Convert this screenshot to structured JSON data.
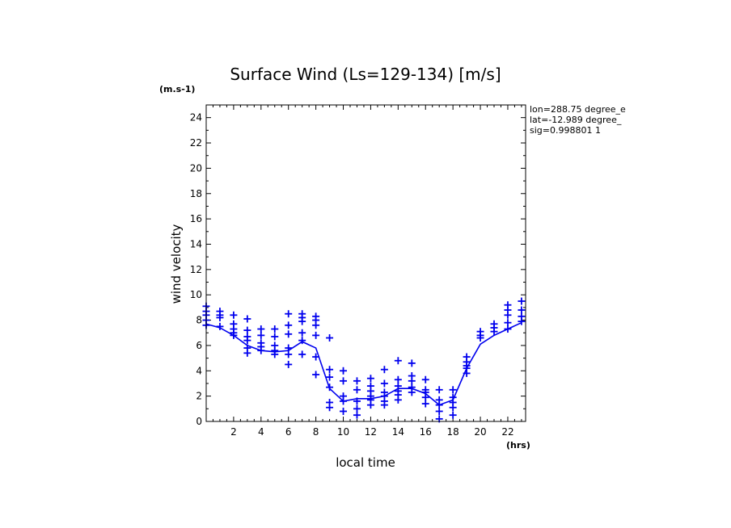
{
  "chart_data": {
    "type": "scatter",
    "title": "Surface Wind  (Ls=129-134) [m/s]",
    "xlabel": "local time",
    "ylabel": "wind velocity",
    "x_unit": "(hrs)",
    "y_unit": "(m.s-1)",
    "xlim": [
      0,
      23.3
    ],
    "ylim": [
      0,
      25
    ],
    "x_ticks": [
      2,
      4,
      6,
      8,
      10,
      12,
      14,
      16,
      18,
      20,
      22
    ],
    "y_ticks": [
      0,
      2,
      4,
      6,
      8,
      10,
      12,
      14,
      16,
      18,
      20,
      22,
      24
    ],
    "grid": false,
    "color": "#0000ee",
    "info_lines": [
      "lon=288.75 degree_e",
      "lat=-12.989 degree_",
      "sig=0.998801 1"
    ],
    "series": [
      {
        "type": "scatter",
        "points": [
          [
            0.0,
            9.1
          ],
          [
            0.0,
            8.7
          ],
          [
            0.0,
            8.4
          ],
          [
            0.0,
            8.0
          ],
          [
            0.0,
            7.6
          ],
          [
            1.0,
            8.7
          ],
          [
            1.0,
            8.4
          ],
          [
            1.0,
            8.2
          ],
          [
            1.0,
            7.5
          ],
          [
            2.0,
            8.4
          ],
          [
            2.0,
            7.7
          ],
          [
            2.0,
            7.3
          ],
          [
            2.0,
            7.0
          ],
          [
            2.0,
            6.8
          ],
          [
            3.0,
            8.1
          ],
          [
            3.0,
            7.2
          ],
          [
            3.0,
            6.7
          ],
          [
            3.0,
            6.4
          ],
          [
            3.0,
            5.8
          ],
          [
            3.0,
            5.4
          ],
          [
            4.0,
            7.3
          ],
          [
            4.0,
            6.8
          ],
          [
            4.0,
            6.2
          ],
          [
            4.0,
            5.9
          ],
          [
            4.0,
            5.6
          ],
          [
            5.0,
            7.3
          ],
          [
            5.0,
            6.7
          ],
          [
            5.0,
            6.0
          ],
          [
            5.0,
            5.6
          ],
          [
            5.0,
            5.3
          ],
          [
            6.0,
            8.5
          ],
          [
            6.0,
            7.6
          ],
          [
            6.0,
            6.9
          ],
          [
            6.0,
            5.8
          ],
          [
            6.0,
            5.3
          ],
          [
            6.0,
            4.5
          ],
          [
            7.0,
            8.5
          ],
          [
            7.0,
            8.2
          ],
          [
            7.0,
            7.9
          ],
          [
            7.0,
            7.0
          ],
          [
            7.0,
            6.4
          ],
          [
            7.0,
            5.3
          ],
          [
            8.0,
            8.3
          ],
          [
            8.0,
            8.0
          ],
          [
            8.0,
            7.6
          ],
          [
            8.0,
            6.8
          ],
          [
            8.0,
            5.1
          ],
          [
            8.0,
            3.7
          ],
          [
            9.0,
            6.6
          ],
          [
            9.0,
            4.1
          ],
          [
            9.0,
            3.5
          ],
          [
            9.0,
            2.7
          ],
          [
            9.0,
            1.5
          ],
          [
            9.0,
            1.1
          ],
          [
            10.0,
            4.0
          ],
          [
            10.0,
            3.2
          ],
          [
            10.0,
            2.0
          ],
          [
            10.0,
            1.6
          ],
          [
            10.0,
            0.8
          ],
          [
            11.0,
            3.2
          ],
          [
            11.0,
            2.5
          ],
          [
            11.0,
            1.6
          ],
          [
            11.0,
            1.0
          ],
          [
            11.0,
            0.5
          ],
          [
            12.0,
            3.4
          ],
          [
            12.0,
            2.8
          ],
          [
            12.0,
            2.4
          ],
          [
            12.0,
            2.0
          ],
          [
            12.0,
            1.7
          ],
          [
            12.0,
            1.3
          ],
          [
            13.0,
            4.1
          ],
          [
            13.0,
            3.0
          ],
          [
            13.0,
            2.3
          ],
          [
            13.0,
            2.0
          ],
          [
            13.0,
            1.6
          ],
          [
            13.0,
            1.3
          ],
          [
            14.0,
            4.8
          ],
          [
            14.0,
            3.3
          ],
          [
            14.0,
            2.8
          ],
          [
            14.0,
            2.4
          ],
          [
            14.0,
            2.1
          ],
          [
            14.0,
            1.7
          ],
          [
            15.0,
            4.6
          ],
          [
            15.0,
            3.6
          ],
          [
            15.0,
            3.2
          ],
          [
            15.0,
            2.7
          ],
          [
            15.0,
            2.3
          ],
          [
            16.0,
            3.3
          ],
          [
            16.0,
            2.5
          ],
          [
            16.0,
            2.3
          ],
          [
            16.0,
            1.9
          ],
          [
            16.0,
            1.4
          ],
          [
            17.0,
            2.5
          ],
          [
            17.0,
            1.7
          ],
          [
            17.0,
            1.3
          ],
          [
            17.0,
            0.8
          ],
          [
            17.0,
            0.2
          ],
          [
            18.0,
            2.5
          ],
          [
            18.0,
            1.9
          ],
          [
            18.0,
            1.5
          ],
          [
            18.0,
            1.1
          ],
          [
            18.0,
            0.5
          ],
          [
            19.0,
            5.1
          ],
          [
            19.0,
            4.7
          ],
          [
            19.0,
            4.4
          ],
          [
            19.0,
            4.2
          ],
          [
            19.0,
            3.8
          ],
          [
            20.0,
            7.1
          ],
          [
            20.0,
            6.8
          ],
          [
            20.0,
            6.6
          ],
          [
            21.0,
            7.7
          ],
          [
            21.0,
            7.4
          ],
          [
            21.0,
            7.1
          ],
          [
            22.0,
            9.2
          ],
          [
            22.0,
            8.8
          ],
          [
            22.0,
            8.4
          ],
          [
            22.0,
            7.8
          ],
          [
            22.0,
            7.3
          ],
          [
            23.0,
            9.5
          ],
          [
            23.0,
            8.8
          ],
          [
            23.0,
            8.3
          ],
          [
            23.0,
            7.9
          ]
        ]
      },
      {
        "type": "line",
        "x": [
          0,
          1,
          2,
          3,
          4,
          5,
          6,
          7,
          8,
          9,
          10,
          11,
          12,
          13,
          14,
          15,
          16,
          17,
          18,
          19,
          20,
          21,
          22,
          23
        ],
        "y": [
          7.7,
          7.4,
          6.8,
          6.0,
          5.6,
          5.5,
          5.6,
          6.3,
          5.8,
          2.6,
          1.6,
          1.8,
          1.8,
          2.0,
          2.6,
          2.6,
          2.2,
          1.3,
          1.7,
          4.2,
          6.1,
          6.8,
          7.3,
          7.8
        ]
      }
    ]
  }
}
